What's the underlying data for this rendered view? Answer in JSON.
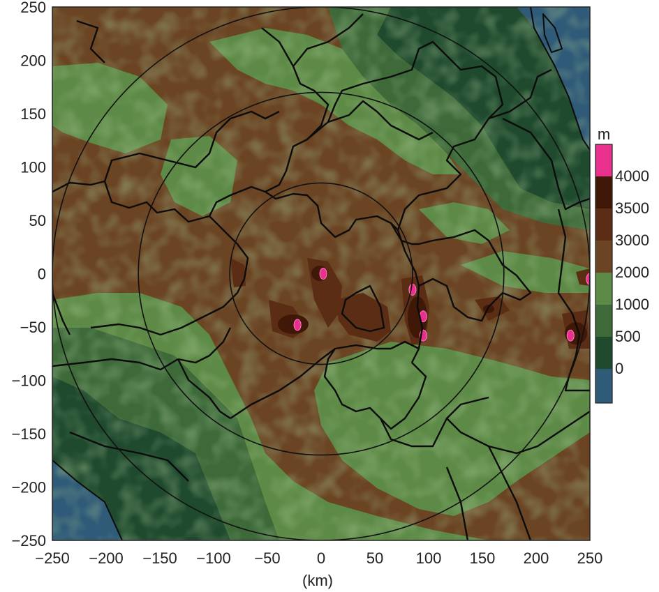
{
  "map": {
    "x_unit_label": "(km)",
    "x_ticks": [
      "−250",
      "−200",
      "−150",
      "−100",
      "−50",
      "0",
      "50",
      "100",
      "150",
      "200",
      "250"
    ],
    "y_ticks": [
      "250",
      "200",
      "150",
      "100",
      "50",
      "0",
      "−50",
      "−100",
      "−150",
      "−200",
      "−250"
    ],
    "range_rings_km": [
      85,
      170,
      250
    ],
    "grid": false
  },
  "colorbar": {
    "unit": "m",
    "labels": [
      "4000",
      "3500",
      "3000",
      "2000",
      "1000",
      "500",
      "0"
    ],
    "colors": {
      "above_4000": "#e8318d",
      "3500_4000": "#3f1807",
      "3000_3500": "#5a2d14",
      "2000_3000": "#6b4423",
      "1000_2000": "#5d8a46",
      "500_1000": "#3e6a3a",
      "0_500": "#1f4a2e",
      "below_0": "#2f5a78"
    }
  },
  "peaks": [
    {
      "x_km": 2,
      "y_km": 0
    },
    {
      "x_km": -22,
      "y_km": -48
    },
    {
      "x_km": 85,
      "y_km": -15
    },
    {
      "x_km": 95,
      "y_km": -40
    },
    {
      "x_km": 95,
      "y_km": -58
    },
    {
      "x_km": 232,
      "y_km": -58
    },
    {
      "x_km": 250,
      "y_km": -5
    }
  ]
}
